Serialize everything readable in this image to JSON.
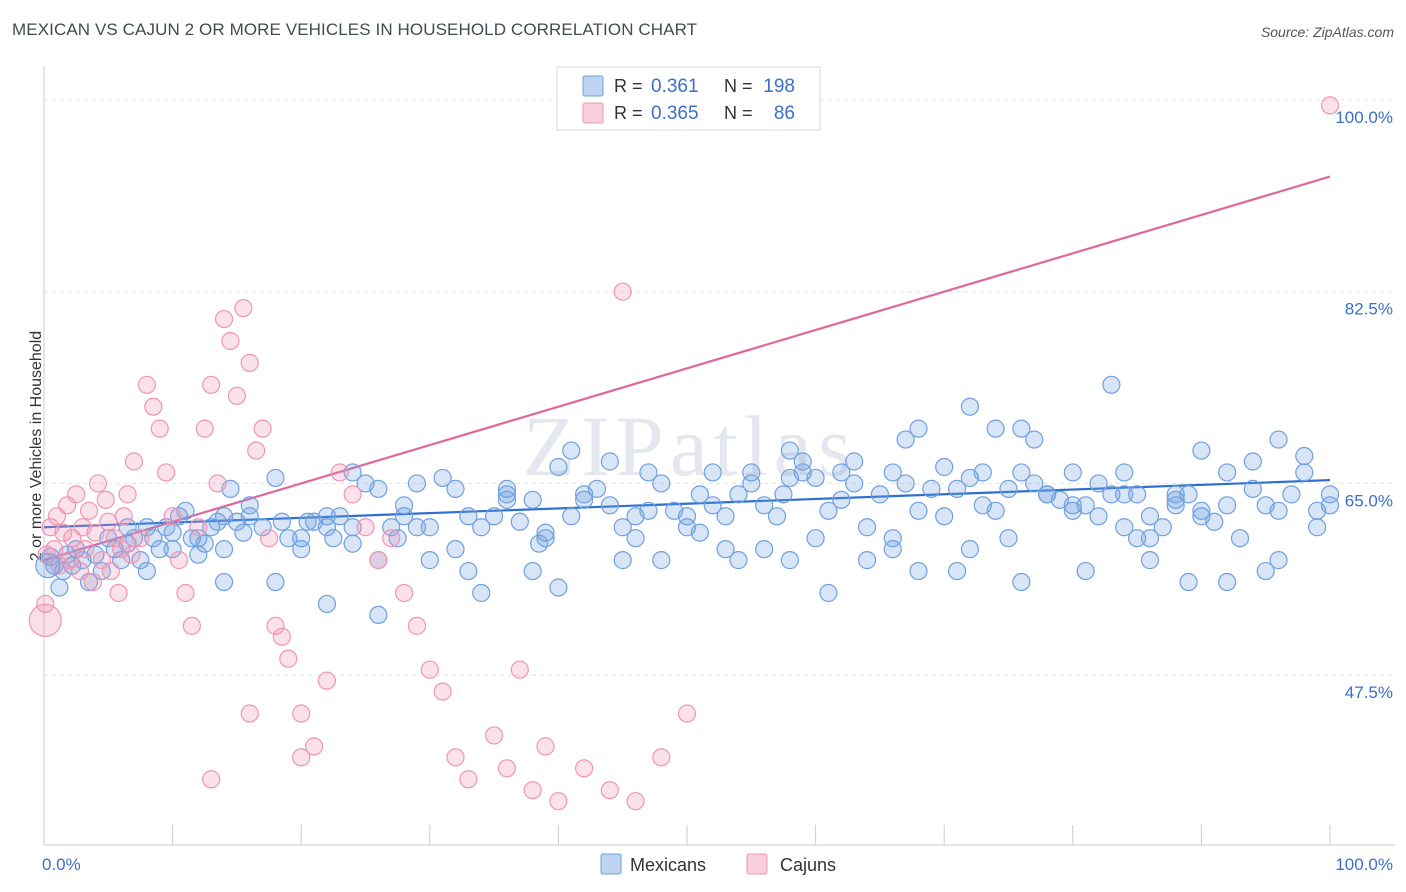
{
  "title": "MEXICAN VS CAJUN 2 OR MORE VEHICLES IN HOUSEHOLD CORRELATION CHART",
  "source": "Source: ZipAtlas.com",
  "watermark": "ZIPatlas",
  "chart_data": {
    "type": "scatter",
    "xlabel": "",
    "ylabel": "2 or more Vehicles in Household",
    "xlim": [
      0,
      100
    ],
    "ylim": [
      32,
      102
    ],
    "x_tick_labels": [
      "0.0%",
      "100.0%"
    ],
    "y_ticks": [
      47.5,
      65.0,
      82.5,
      100.0
    ],
    "y_tick_labels": [
      "47.5%",
      "65.0%",
      "82.5%",
      "100.0%"
    ],
    "legend": [
      {
        "series": "Mexicans",
        "r_label": "R =",
        "r_value": "0.361",
        "n_label": "N =",
        "n_value": "198"
      },
      {
        "series": "Cajuns",
        "r_label": "R =",
        "r_value": "0.365",
        "n_label": "N =",
        "n_value": "86"
      }
    ],
    "series": [
      {
        "name": "Mexicans",
        "color": "#6fa0e0",
        "trend_color": "#2f6fd0",
        "trend": {
          "x": [
            0,
            100
          ],
          "y": [
            61.0,
            65.3
          ]
        },
        "points": [
          [
            0.5,
            58.3
          ],
          [
            0.8,
            57.5
          ],
          [
            1.2,
            55.5
          ],
          [
            1.5,
            57
          ],
          [
            1.8,
            58.5
          ],
          [
            2.2,
            57.5
          ],
          [
            2.5,
            59
          ],
          [
            3,
            58
          ],
          [
            3.5,
            56
          ],
          [
            4,
            58.5
          ],
          [
            4.5,
            57
          ],
          [
            5,
            60
          ],
          [
            5.5,
            59
          ],
          [
            6,
            58
          ],
          [
            6.5,
            61
          ],
          [
            7,
            60
          ],
          [
            7.5,
            58
          ],
          [
            8,
            61
          ],
          [
            8.5,
            60
          ],
          [
            9,
            59
          ],
          [
            9.5,
            61
          ],
          [
            10,
            60.5
          ],
          [
            10.5,
            62
          ],
          [
            11,
            62.5
          ],
          [
            11.5,
            60
          ],
          [
            12,
            60
          ],
          [
            12.5,
            59.5
          ],
          [
            13,
            61
          ],
          [
            13.5,
            61.5
          ],
          [
            14,
            62
          ],
          [
            14.5,
            64.5
          ],
          [
            15,
            61.5
          ],
          [
            15.5,
            60.5
          ],
          [
            16,
            62
          ],
          [
            17,
            61
          ],
          [
            18,
            65.5
          ],
          [
            18.5,
            61.5
          ],
          [
            19,
            60
          ],
          [
            20,
            60
          ],
          [
            20.5,
            61.5
          ],
          [
            21,
            61.5
          ],
          [
            22,
            61
          ],
          [
            22.5,
            60
          ],
          [
            23,
            62
          ],
          [
            24,
            61
          ],
          [
            25,
            65
          ],
          [
            26,
            64.5
          ],
          [
            27,
            61
          ],
          [
            27.5,
            60
          ],
          [
            28,
            62
          ],
          [
            29,
            61
          ],
          [
            30,
            61
          ],
          [
            31,
            65.5
          ],
          [
            32,
            64.5
          ],
          [
            33,
            62
          ],
          [
            34,
            61
          ],
          [
            35,
            62
          ],
          [
            36,
            64.5
          ],
          [
            37,
            61.5
          ],
          [
            38,
            63.5
          ],
          [
            38.5,
            59.5
          ],
          [
            39,
            60.5
          ],
          [
            40,
            66.5
          ],
          [
            41,
            62
          ],
          [
            42,
            64
          ],
          [
            43,
            64.5
          ],
          [
            44,
            63
          ],
          [
            45,
            61
          ],
          [
            46,
            62
          ],
          [
            47,
            62.5
          ],
          [
            48,
            65
          ],
          [
            49,
            62.5
          ],
          [
            50,
            61
          ],
          [
            51,
            60.5
          ],
          [
            52,
            66
          ],
          [
            53,
            62
          ],
          [
            54,
            64
          ],
          [
            55,
            65
          ],
          [
            56,
            63
          ],
          [
            57,
            62
          ],
          [
            57.5,
            64
          ],
          [
            58,
            65.5
          ],
          [
            59,
            67
          ],
          [
            60,
            65.5
          ],
          [
            61,
            62.5
          ],
          [
            62,
            63.5
          ],
          [
            63,
            65
          ],
          [
            64,
            61
          ],
          [
            65,
            64
          ],
          [
            66,
            66
          ],
          [
            67,
            65
          ],
          [
            68,
            62.5
          ],
          [
            69,
            64.5
          ],
          [
            70,
            66.5
          ],
          [
            71,
            64.5
          ],
          [
            72,
            65.5
          ],
          [
            73,
            63
          ],
          [
            74,
            62.5
          ],
          [
            75,
            64.5
          ],
          [
            76,
            66
          ],
          [
            77,
            65
          ],
          [
            78,
            64
          ],
          [
            79,
            63.5
          ],
          [
            80,
            62.5
          ],
          [
            81,
            63
          ],
          [
            82,
            62
          ],
          [
            83,
            64
          ],
          [
            84,
            61
          ],
          [
            85,
            64
          ],
          [
            86,
            62
          ],
          [
            87,
            61
          ],
          [
            88,
            63.5
          ],
          [
            89,
            64
          ],
          [
            90,
            62.5
          ],
          [
            91,
            61.5
          ],
          [
            92,
            63
          ],
          [
            93,
            60
          ],
          [
            94,
            64.5
          ],
          [
            95,
            63
          ],
          [
            96,
            62.5
          ],
          [
            97,
            64
          ],
          [
            98,
            66
          ],
          [
            99,
            62.5
          ],
          [
            100,
            63
          ],
          [
            12,
            58.5
          ],
          [
            14,
            59
          ],
          [
            16,
            63
          ],
          [
            18,
            56
          ],
          [
            20,
            59
          ],
          [
            22,
            62
          ],
          [
            24,
            59.5
          ],
          [
            26,
            58
          ],
          [
            28,
            63
          ],
          [
            30,
            58
          ],
          [
            32,
            59
          ],
          [
            34,
            55
          ],
          [
            36,
            63.5
          ],
          [
            38,
            57
          ],
          [
            40,
            55.5
          ],
          [
            42,
            63.5
          ],
          [
            44,
            67
          ],
          [
            46,
            60
          ],
          [
            48,
            58
          ],
          [
            50,
            62
          ],
          [
            52,
            63
          ],
          [
            54,
            58
          ],
          [
            56,
            59
          ],
          [
            58,
            58
          ],
          [
            60,
            60
          ],
          [
            62,
            66
          ],
          [
            64,
            58
          ],
          [
            66,
            60
          ],
          [
            68,
            57
          ],
          [
            70,
            62
          ],
          [
            72,
            59
          ],
          [
            74,
            70
          ],
          [
            76,
            56
          ],
          [
            78,
            64
          ],
          [
            80,
            63
          ],
          [
            82,
            65
          ],
          [
            84,
            66
          ],
          [
            86,
            60
          ],
          [
            88,
            64
          ],
          [
            90,
            68
          ],
          [
            92,
            56
          ],
          [
            94,
            67
          ],
          [
            96,
            58
          ],
          [
            98,
            67.5
          ],
          [
            100,
            64
          ],
          [
            6.5,
            59.5
          ],
          [
            8,
            57
          ],
          [
            10,
            59
          ],
          [
            14,
            56
          ],
          [
            22,
            54
          ],
          [
            26,
            53
          ],
          [
            33,
            57
          ],
          [
            39,
            60
          ],
          [
            45,
            58
          ],
          [
            53,
            59
          ],
          [
            61,
            55
          ],
          [
            66,
            59
          ],
          [
            71,
            57
          ],
          [
            75,
            60
          ],
          [
            81,
            57
          ],
          [
            85,
            60
          ],
          [
            89,
            56
          ],
          [
            95,
            57
          ],
          [
            99,
            61
          ],
          [
            58,
            68
          ],
          [
            63,
            67
          ],
          [
            68,
            70
          ],
          [
            72,
            72
          ],
          [
            76,
            70
          ],
          [
            80,
            66
          ],
          [
            84,
            64
          ],
          [
            88,
            63
          ],
          [
            92,
            66
          ],
          [
            96,
            69
          ],
          [
            51,
            64
          ],
          [
            47,
            66
          ],
          [
            55,
            66
          ],
          [
            59,
            66
          ],
          [
            67,
            69
          ],
          [
            73,
            66
          ],
          [
            77,
            69
          ],
          [
            83,
            74
          ],
          [
            86,
            58
          ],
          [
            90,
            62
          ],
          [
            41,
            68
          ],
          [
            36,
            64
          ],
          [
            29,
            65
          ],
          [
            24,
            66
          ]
        ]
      },
      {
        "name": "Cajuns",
        "color": "#f095b4",
        "trend_color": "#e0679a",
        "trend": {
          "x": [
            0,
            100
          ],
          "y": [
            58.0,
            93.0
          ]
        },
        "points": [
          [
            0.2,
            58.5
          ],
          [
            0.5,
            61
          ],
          [
            0.8,
            59
          ],
          [
            1,
            62
          ],
          [
            1.2,
            57.5
          ],
          [
            1.5,
            60.5
          ],
          [
            1.8,
            63
          ],
          [
            2,
            58
          ],
          [
            2.2,
            60
          ],
          [
            2.5,
            64
          ],
          [
            2.8,
            57
          ],
          [
            3,
            61
          ],
          [
            3.2,
            59
          ],
          [
            3.5,
            62.5
          ],
          [
            3.8,
            56
          ],
          [
            4,
            60.5
          ],
          [
            4.2,
            65
          ],
          [
            4.5,
            58
          ],
          [
            4.8,
            63.5
          ],
          [
            5,
            61.5
          ],
          [
            5.2,
            57
          ],
          [
            5.5,
            60
          ],
          [
            5.8,
            55
          ],
          [
            6,
            59
          ],
          [
            6.2,
            62
          ],
          [
            6.5,
            64
          ],
          [
            6.8,
            58.5
          ],
          [
            7,
            67
          ],
          [
            7.5,
            60
          ],
          [
            8,
            74
          ],
          [
            8.5,
            72
          ],
          [
            9,
            70
          ],
          [
            9.5,
            66
          ],
          [
            10,
            62
          ],
          [
            10.5,
            58
          ],
          [
            11,
            55
          ],
          [
            11.5,
            52
          ],
          [
            12,
            61
          ],
          [
            12.5,
            70
          ],
          [
            13,
            74
          ],
          [
            13.5,
            65
          ],
          [
            14,
            80
          ],
          [
            14.5,
            78
          ],
          [
            15,
            73
          ],
          [
            15.5,
            81
          ],
          [
            16,
            76
          ],
          [
            16.5,
            68
          ],
          [
            17,
            70
          ],
          [
            17.5,
            60
          ],
          [
            18,
            52
          ],
          [
            18.5,
            51
          ],
          [
            19,
            49
          ],
          [
            20,
            44
          ],
          [
            21,
            41
          ],
          [
            22,
            47
          ],
          [
            23,
            66
          ],
          [
            24,
            64
          ],
          [
            25,
            61
          ],
          [
            26,
            58
          ],
          [
            27,
            60
          ],
          [
            28,
            55
          ],
          [
            29,
            52
          ],
          [
            30,
            48
          ],
          [
            31,
            46
          ],
          [
            32,
            40
          ],
          [
            33,
            38
          ],
          [
            35,
            42
          ],
          [
            36,
            39
          ],
          [
            37,
            48
          ],
          [
            38,
            37
          ],
          [
            39,
            41
          ],
          [
            40,
            36
          ],
          [
            42,
            39
          ],
          [
            44,
            37
          ],
          [
            45,
            82.5
          ],
          [
            46,
            36
          ],
          [
            48,
            40
          ],
          [
            50,
            44
          ],
          [
            0.1,
            54
          ],
          [
            100,
            99.5
          ],
          [
            13,
            38
          ],
          [
            16,
            44
          ],
          [
            20,
            40
          ]
        ]
      }
    ]
  }
}
